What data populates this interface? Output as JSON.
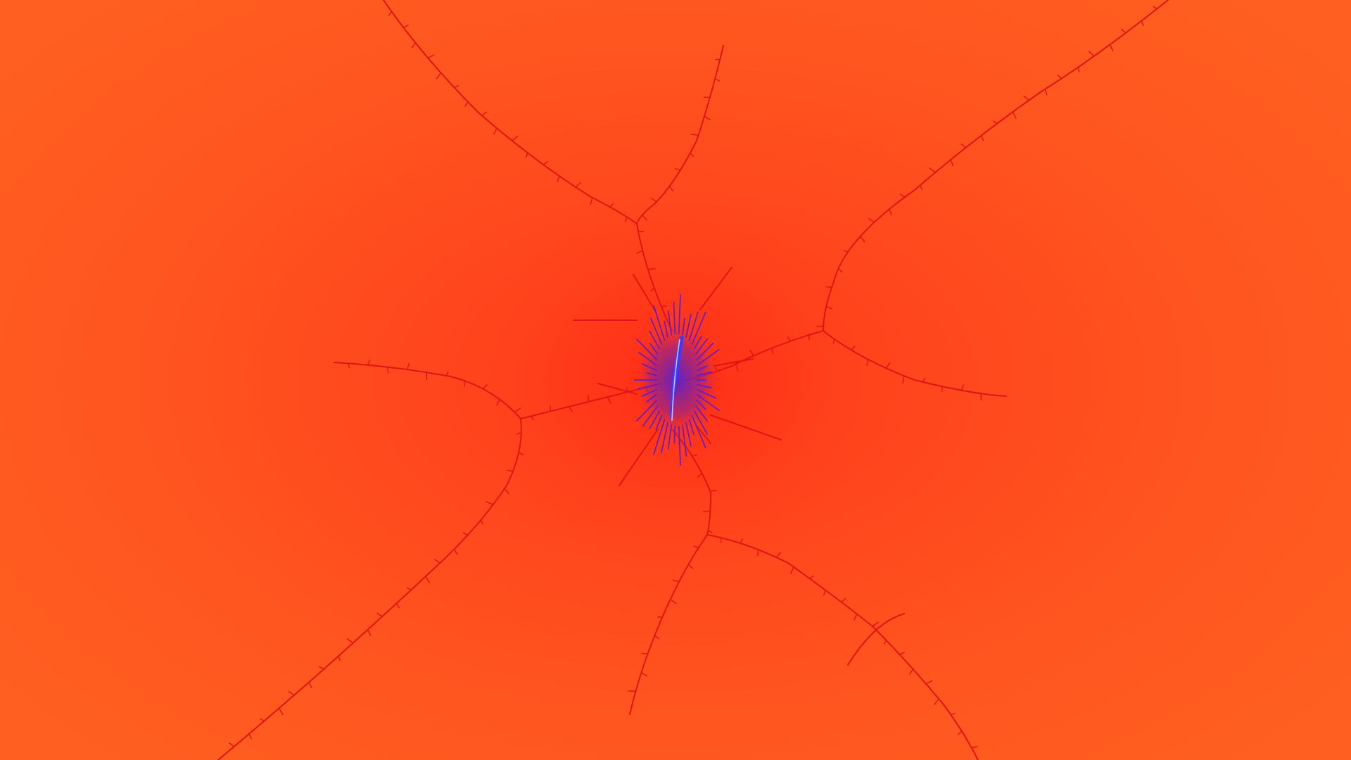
{
  "image": {
    "subject": "fractal",
    "colors": {
      "background": "#ff5a1f",
      "background_edge": "#ff6122",
      "center_glow": "#ff2e17",
      "filament": "#e01414",
      "core_outer": "#5a1ad8",
      "core_inner": "#3b3bff",
      "core_highlight": "#b8b0ff"
    }
  }
}
